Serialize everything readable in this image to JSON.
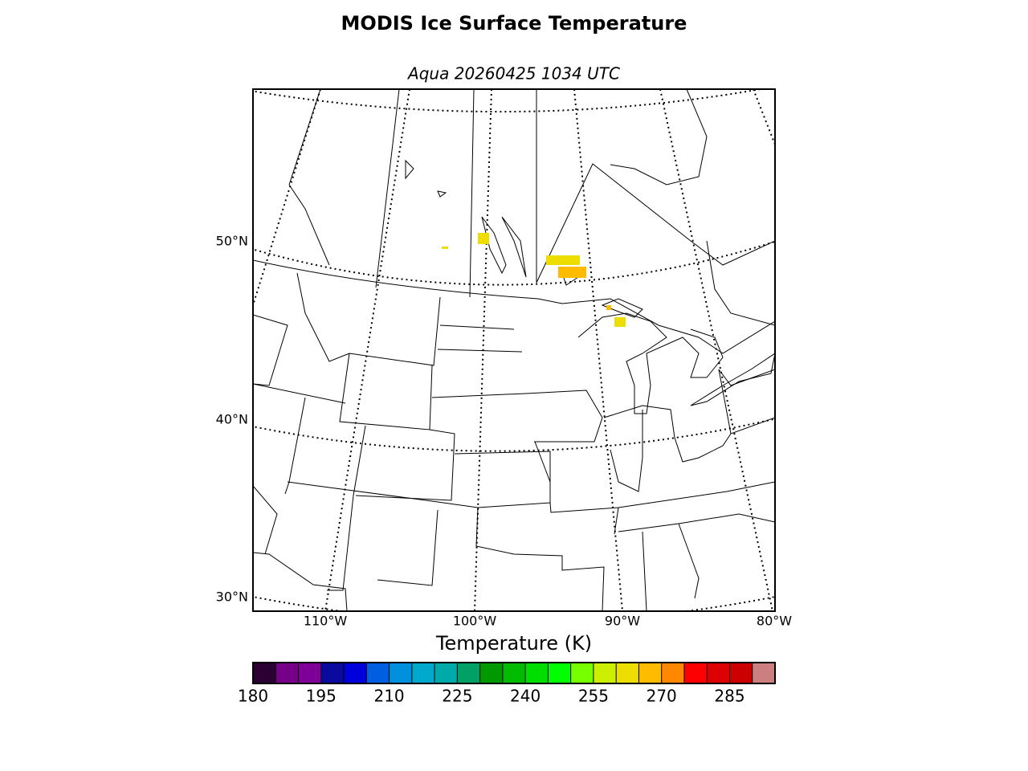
{
  "title": "MODIS Ice Surface Temperature",
  "subtitle": "Aqua 20260425 1034 UTC",
  "map": {
    "lat_labels": [
      "50°N",
      "40°N",
      "30°N"
    ],
    "lon_labels": [
      "110°W",
      "100°W",
      "90°W",
      "80°W"
    ]
  },
  "colorbar": {
    "label": "Temperature (K)",
    "lim": [
      180,
      295
    ],
    "ticks": [
      180,
      195,
      210,
      225,
      240,
      255,
      270,
      285
    ],
    "colors": [
      "#2b0033",
      "#770088",
      "#7f0099",
      "#0a0a9e",
      "#0000dd",
      "#005ee0",
      "#0090dd",
      "#00a8cc",
      "#00aaaa",
      "#00a066",
      "#009900",
      "#00bb00",
      "#00dd00",
      "#00ff00",
      "#77ff00",
      "#ccee00",
      "#eedd00",
      "#ffbb00",
      "#ff8800",
      "#ff0000",
      "#dd0000",
      "#cc0000",
      "#cc7f7f"
    ]
  }
}
